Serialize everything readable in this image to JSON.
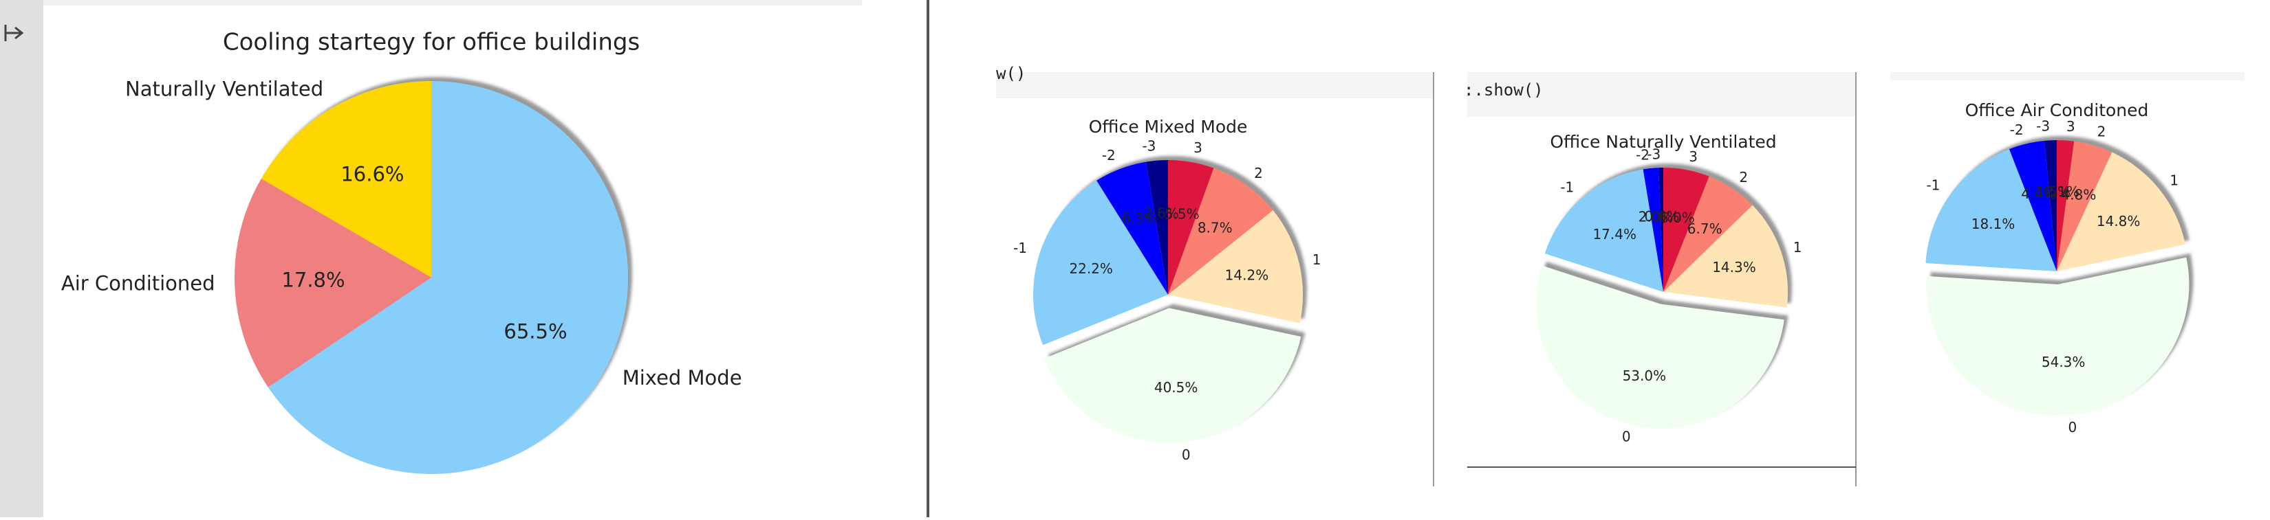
{
  "chart_data": [
    {
      "type": "pie",
      "title": "Cooling startegy for office buildings",
      "categories": [
        "Naturally Ventilated",
        "Air Conditioned",
        "Mixed Mode"
      ],
      "values": [
        16.6,
        17.8,
        65.5
      ],
      "value_labels": [
        "16.6%",
        "17.8%",
        "65.5%"
      ],
      "colors": [
        "#ffd700",
        "#f08080",
        "#87cefa"
      ],
      "explode": [
        0,
        0,
        0
      ],
      "startangle": 90,
      "shadow": true
    },
    {
      "type": "pie",
      "title": "Office Mixed Mode",
      "categories": [
        "-3",
        "-2",
        "-1",
        "0",
        "1",
        "2",
        "3"
      ],
      "values": [
        2.6,
        6.3,
        22.2,
        40.5,
        14.2,
        8.7,
        5.5
      ],
      "value_labels": [
        "2.6%",
        "6.3%",
        "22.2%",
        "40.5%",
        "14.2%",
        "8.7%",
        "5.5%"
      ],
      "colors": [
        "#00008b",
        "#0000ff",
        "#87cefa",
        "#f0fff0",
        "#ffe4b5",
        "#fa8072",
        "#dc143c"
      ],
      "explode": [
        0,
        0,
        0,
        0.1,
        0,
        0,
        0
      ],
      "startangle": 90,
      "shadow": true
    },
    {
      "type": "pie",
      "title": "Office Naturally Ventilated",
      "categories": [
        "-3",
        "-2",
        "-1",
        "0",
        "1",
        "2",
        "3"
      ],
      "values": [
        0.6,
        2.0,
        17.4,
        53.0,
        14.3,
        6.7,
        6.0
      ],
      "value_labels": [
        "0.6%",
        "2.0%",
        "17.4%",
        "53.0%",
        "14.3%",
        "6.7%",
        "6.0%"
      ],
      "colors": [
        "#00008b",
        "#0000ff",
        "#87cefa",
        "#f0fff0",
        "#ffe4b5",
        "#fa8072",
        "#dc143c"
      ],
      "explode": [
        0,
        0,
        0,
        0.1,
        0,
        0,
        0
      ],
      "startangle": 90,
      "shadow": true
    },
    {
      "type": "pie",
      "title": "Office Air Conditoned",
      "categories": [
        "-3",
        "-2",
        "-1",
        "0",
        "1",
        "2",
        "3"
      ],
      "values": [
        1.5,
        4.4,
        18.1,
        54.3,
        14.8,
        4.8,
        2.1
      ],
      "value_labels": [
        "1.5%",
        "4.4%",
        "18.1%",
        "54.3%",
        "14.8%",
        "4.8%",
        "2.1%"
      ],
      "colors": [
        "#00008b",
        "#0000ff",
        "#87cefa",
        "#f0fff0",
        "#ffe4b5",
        "#fa8072",
        "#dc143c"
      ],
      "explode": [
        0,
        0,
        0,
        0.1,
        0,
        0,
        0
      ],
      "startangle": 90,
      "shadow": true
    }
  ],
  "code_fragments": [
    "w()",
    ":.show()"
  ]
}
